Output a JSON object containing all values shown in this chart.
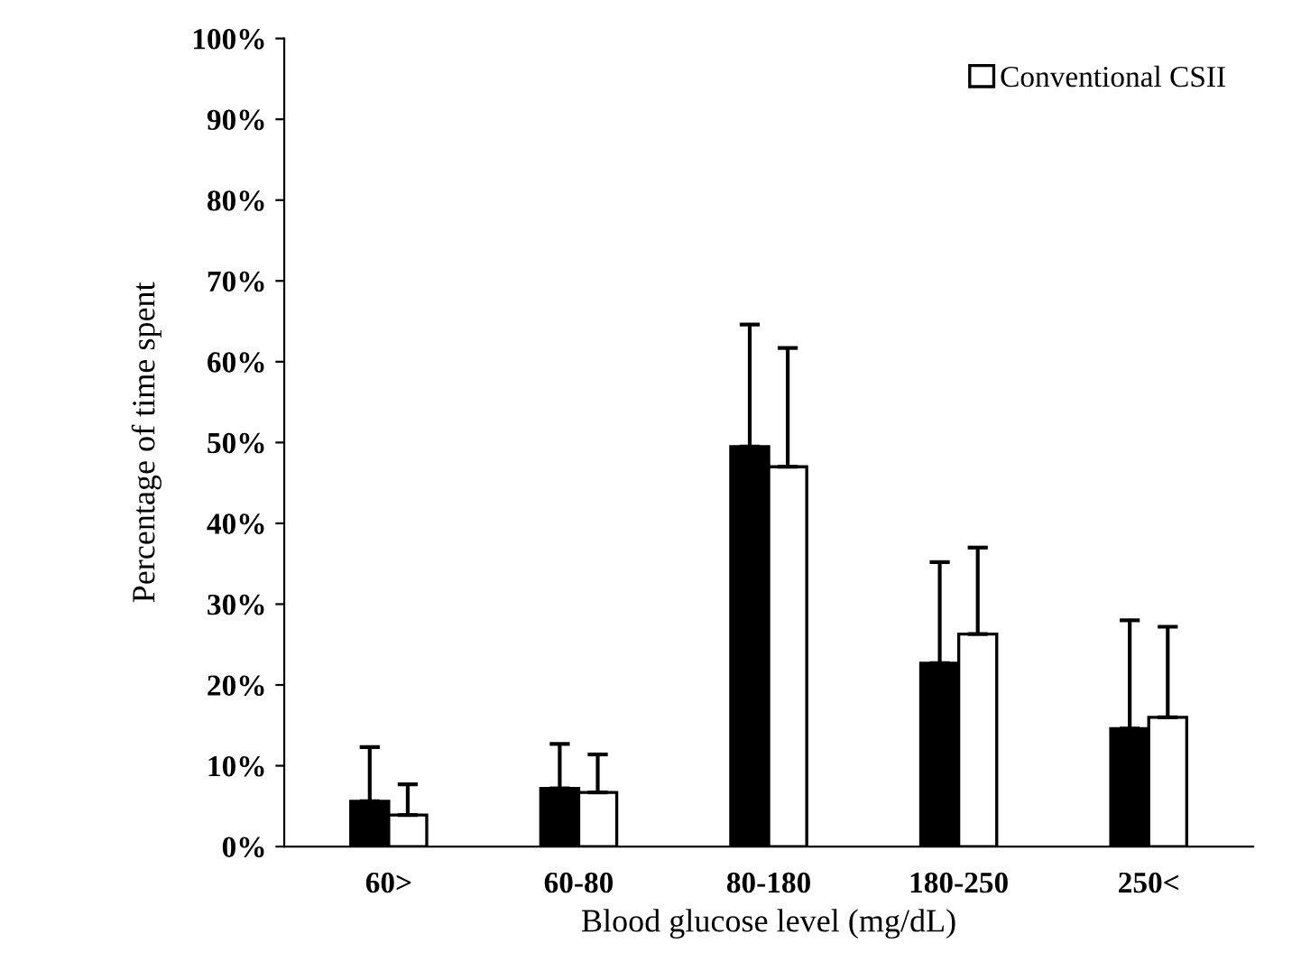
{
  "chart_data": {
    "type": "bar",
    "xlabel": "Blood glucose level (mg/dL)",
    "ylabel": "Percentage of time spent",
    "categories": [
      "60>",
      "60-80",
      "80-180",
      "180-250",
      "250<"
    ],
    "series": [
      {
        "color": "#000000",
        "values": [
          5.6,
          7.2,
          49.5,
          22.7,
          14.6
        ],
        "errors": [
          [
            5.6,
            12.3
          ],
          [
            7.2,
            12.7
          ],
          [
            49.5,
            64.6
          ],
          [
            22.7,
            35.2
          ],
          [
            14.6,
            28.0
          ]
        ]
      },
      {
        "name": "Conventional CSII",
        "color": "#ffffff",
        "values": [
          3.9,
          6.7,
          47.0,
          26.3,
          16.0
        ],
        "errors": [
          [
            3.9,
            7.7
          ],
          [
            6.7,
            11.4
          ],
          [
            47.0,
            61.7
          ],
          [
            26.3,
            37.0
          ],
          [
            16.0,
            27.2
          ]
        ]
      }
    ],
    "ylim": [
      0,
      100
    ],
    "yticks": [
      {
        "value": 0,
        "label": "0%"
      },
      {
        "value": 10,
        "label": "10%"
      },
      {
        "value": 20,
        "label": "20%"
      },
      {
        "value": 30,
        "label": "30%"
      },
      {
        "value": 40,
        "label": "40%"
      },
      {
        "value": 50,
        "label": "50%"
      },
      {
        "value": 60,
        "label": "60%"
      },
      {
        "value": 70,
        "label": "70%"
      },
      {
        "value": 80,
        "label": "80%"
      },
      {
        "value": 90,
        "label": "90%"
      },
      {
        "value": 100,
        "label": "100%"
      }
    ],
    "legend": "top right",
    "grid": false
  }
}
